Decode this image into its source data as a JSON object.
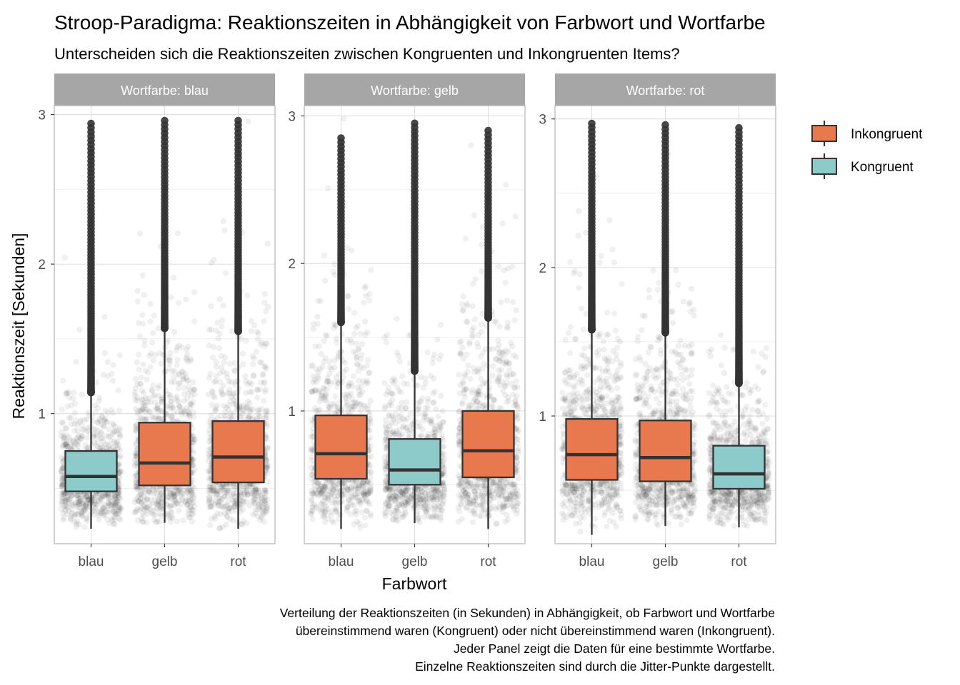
{
  "chart_data": {
    "type": "boxplot",
    "title": "Stroop-Paradigma: Reaktionszeiten in Abhängigkeit von Farbwort und Wortfarbe",
    "subtitle": "Unterscheiden sich die Reaktionszeiten zwischen Kongruenten und Inkongruenten Items?",
    "xlabel": "Farbwort",
    "ylabel": "Reaktionszeit [Sekunden]",
    "caption": [
      "Verteilung der Reaktionszeiten (in Sekunden) in Abhängigkeit, ob Farbwort und Wortfarbe",
      "übereinstimmend waren (Kongruent) oder nicht übereinstimmend waren (Inkongruent).",
      "Jeder Panel zeigt die Daten für eine bestimmte Wortfarbe.",
      "Einzelne Reaktionszeiten sind durch die Jitter-Punkte dargestellt."
    ],
    "legend": {
      "position": "right",
      "entries": [
        {
          "label": "Inkongruent",
          "color": "#E8784E"
        },
        {
          "label": "Kongruent",
          "color": "#8DCBCB"
        }
      ]
    },
    "categories": [
      "blau",
      "gelb",
      "rot"
    ],
    "yticks": [
      1,
      2,
      3
    ],
    "grid": true,
    "panels": [
      {
        "strip": "Wortfarbe: blau",
        "ylim": [
          0.13,
          3.06
        ],
        "boxes": [
          {
            "category": "blau",
            "group": "Kongruent",
            "min": 0.23,
            "q1": 0.48,
            "median": 0.58,
            "q3": 0.75,
            "whisker_high": 1.14,
            "outliers_from": 1.14,
            "outliers_to": 2.94
          },
          {
            "category": "gelb",
            "group": "Inkongruent",
            "min": 0.27,
            "q1": 0.52,
            "median": 0.67,
            "q3": 0.94,
            "whisker_high": 1.57,
            "outliers_from": 1.57,
            "outliers_to": 2.96
          },
          {
            "category": "rot",
            "group": "Inkongruent",
            "min": 0.23,
            "q1": 0.54,
            "median": 0.71,
            "q3": 0.95,
            "whisker_high": 1.55,
            "outliers_from": 1.55,
            "outliers_to": 2.96
          }
        ]
      },
      {
        "strip": "Wortfarbe: gelb",
        "ylim": [
          0.1,
          3.07
        ],
        "boxes": [
          {
            "category": "blau",
            "group": "Inkongruent",
            "min": 0.2,
            "q1": 0.54,
            "median": 0.71,
            "q3": 0.97,
            "whisker_high": 1.6,
            "outliers_from": 1.6,
            "outliers_to": 2.85
          },
          {
            "category": "gelb",
            "group": "Kongruent",
            "min": 0.24,
            "q1": 0.5,
            "median": 0.6,
            "q3": 0.81,
            "whisker_high": 1.27,
            "outliers_from": 1.27,
            "outliers_to": 2.95
          },
          {
            "category": "rot",
            "group": "Inkongruent",
            "min": 0.2,
            "q1": 0.55,
            "median": 0.73,
            "q3": 1.0,
            "whisker_high": 1.63,
            "outliers_from": 1.63,
            "outliers_to": 2.9
          }
        ]
      },
      {
        "strip": "Wortfarbe: rot",
        "ylim": [
          0.14,
          3.09
        ],
        "boxes": [
          {
            "category": "blau",
            "group": "Inkongruent",
            "min": 0.2,
            "q1": 0.57,
            "median": 0.74,
            "q3": 0.98,
            "whisker_high": 1.58,
            "outliers_from": 1.58,
            "outliers_to": 2.97
          },
          {
            "category": "gelb",
            "group": "Inkongruent",
            "min": 0.26,
            "q1": 0.56,
            "median": 0.72,
            "q3": 0.97,
            "whisker_high": 1.56,
            "outliers_from": 1.56,
            "outliers_to": 2.96
          },
          {
            "category": "rot",
            "group": "Kongruent",
            "min": 0.25,
            "q1": 0.51,
            "median": 0.61,
            "q3": 0.8,
            "whisker_high": 1.22,
            "outliers_from": 1.22,
            "outliers_to": 2.94
          }
        ]
      }
    ]
  }
}
